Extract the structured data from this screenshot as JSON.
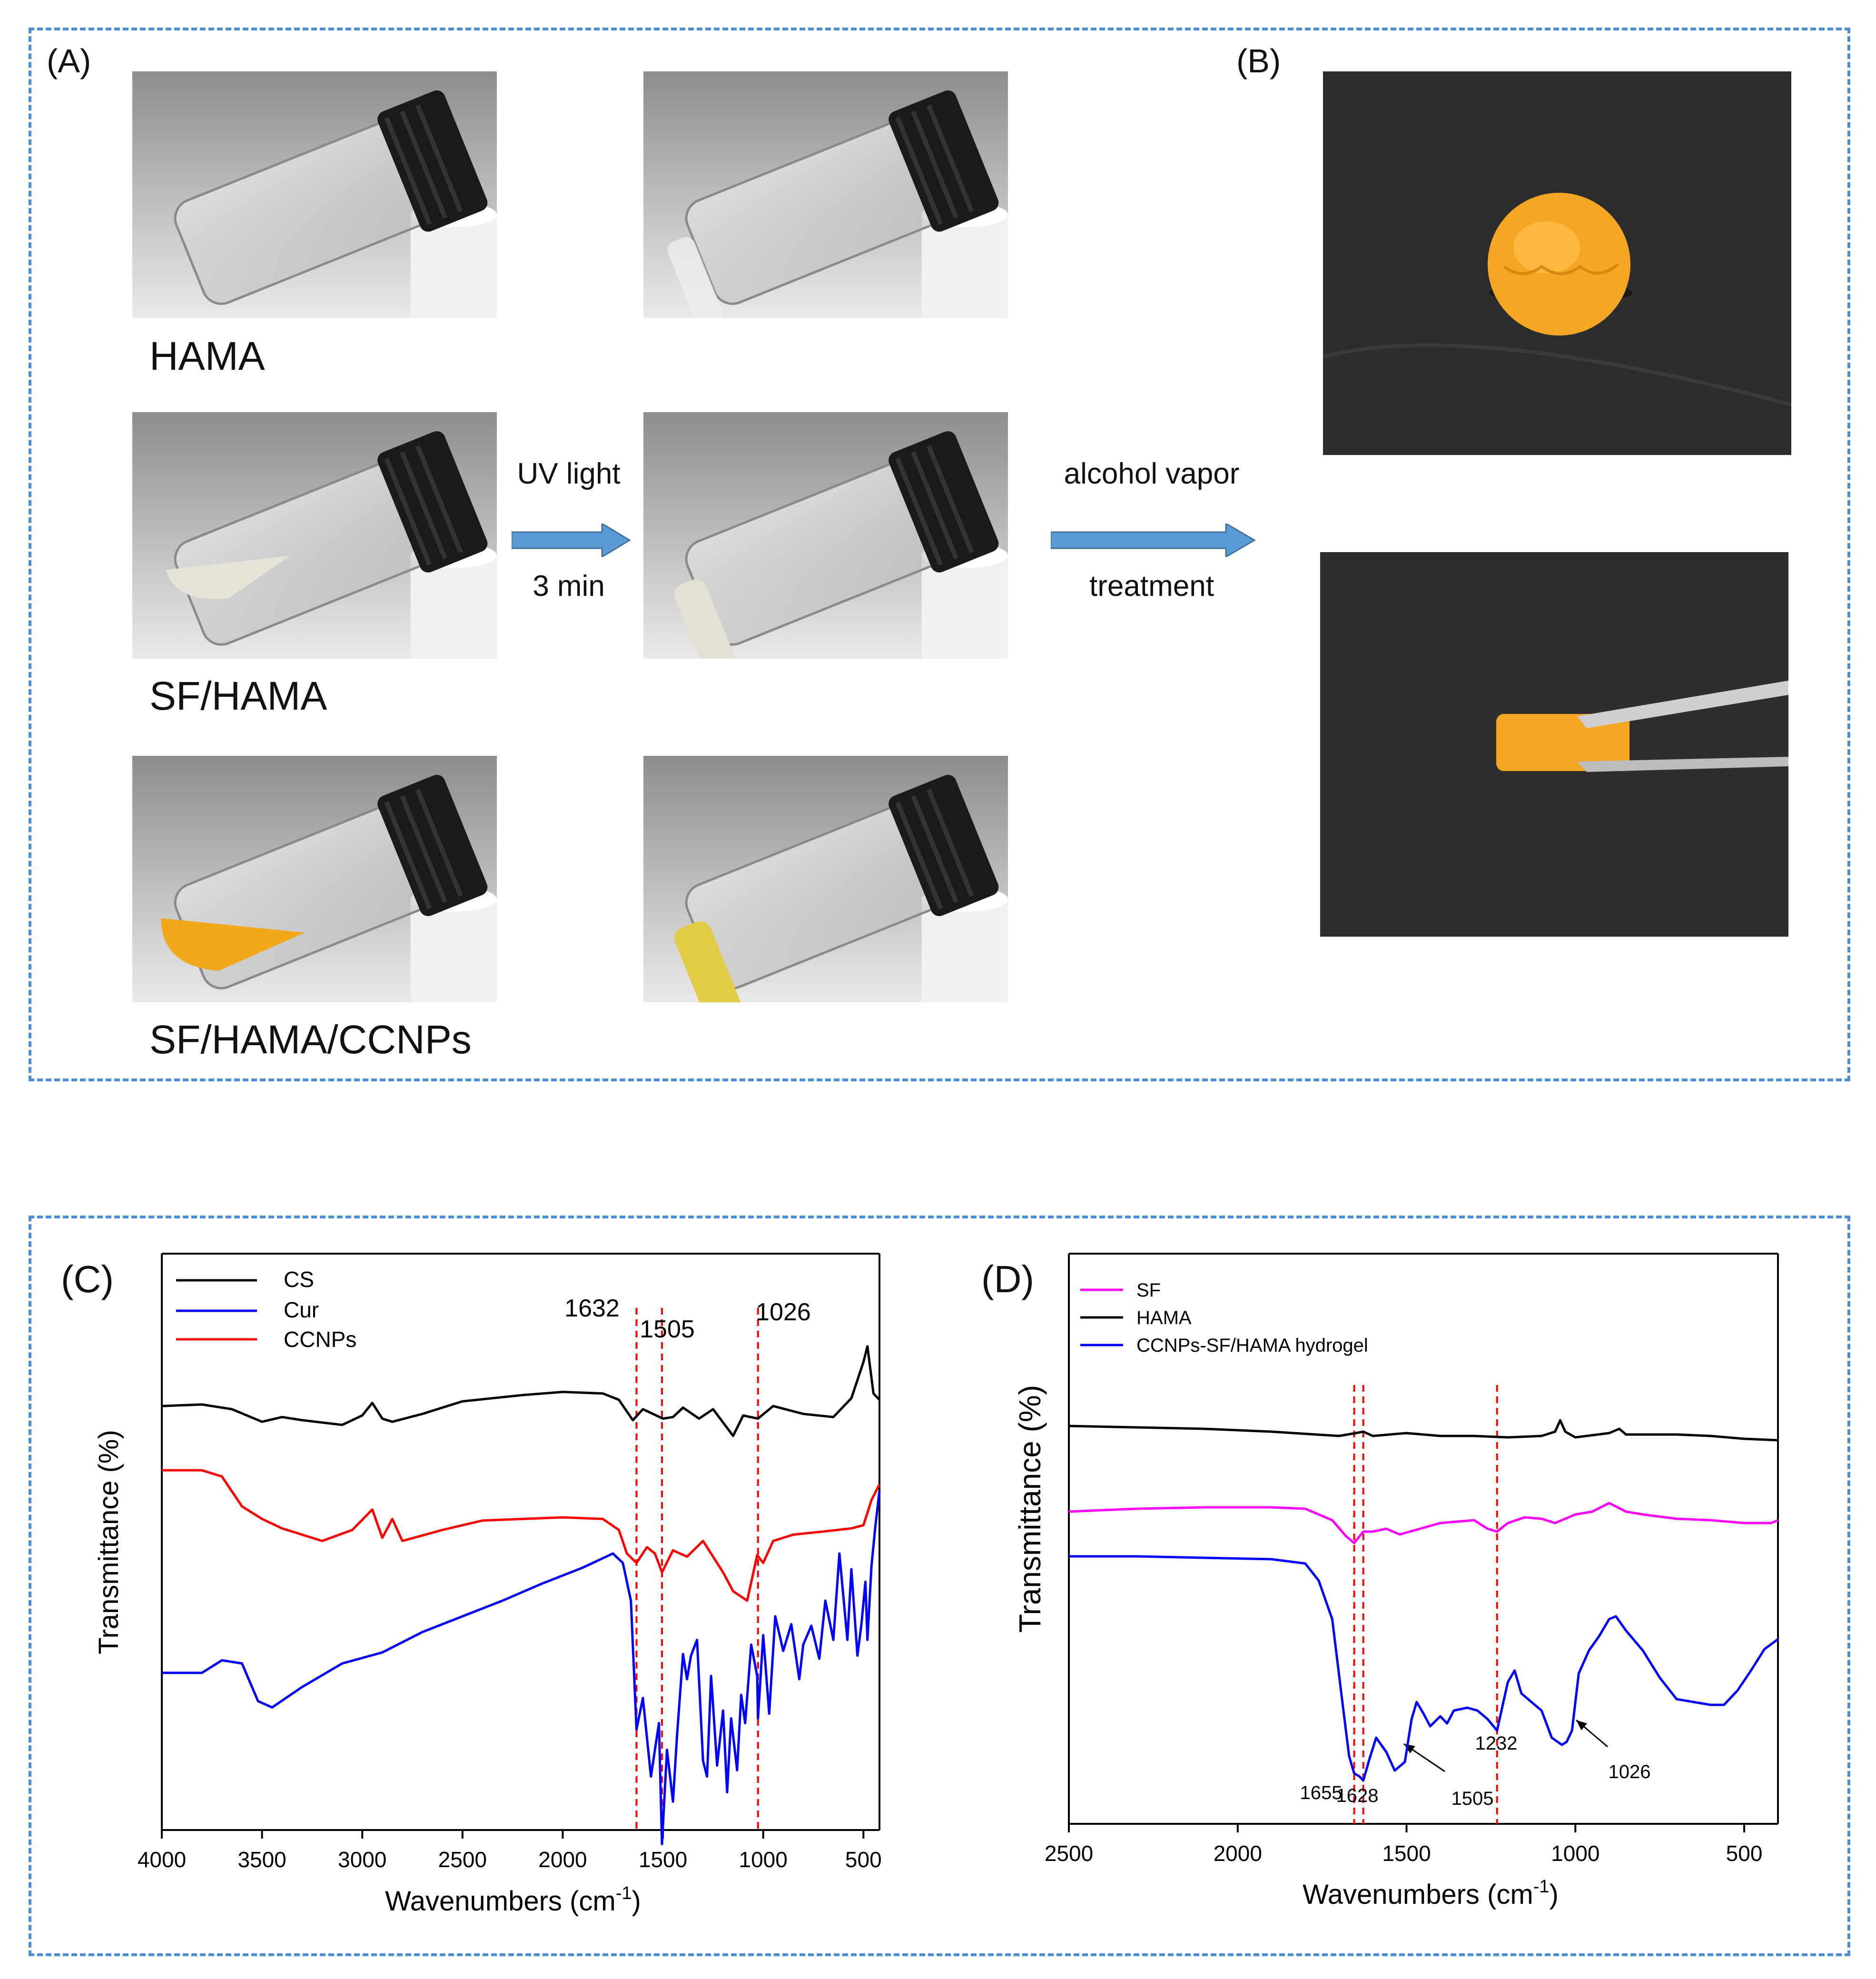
{
  "panels": {
    "a": "(A)",
    "b": "(B)",
    "c": "(C)",
    "d": "(D)"
  },
  "captions": {
    "hama": "HAMA",
    "sf_hama": "SF/HAMA",
    "sf_hama_ccnps": "SF/HAMA/CCNPs"
  },
  "uv_arrow": {
    "top": "UV light",
    "bottom": "3 min"
  },
  "alcohol_arrow": {
    "top": "alcohol vapor",
    "bottom": "treatment"
  },
  "colors": {
    "frame": "#4a8ed6",
    "arrow": "#5b9bd5",
    "black": "#000000",
    "blue": "#0000ff",
    "red": "#ff0000",
    "magenta": "#ff00ff",
    "gel": "#f5a623"
  },
  "chart_data": [
    {
      "type": "line",
      "panel": "(C)",
      "xlabel": "Wavenumbers (cm",
      "xlabel_sup": "-1",
      "xlabel_close": ")",
      "ylabel": "Transmittance (%)",
      "xlim": [
        4000,
        420
      ],
      "x_ticks": [
        "4000",
        "3500",
        "3000",
        "2500",
        "2000",
        "1500",
        "1000",
        "500"
      ],
      "markers": [
        {
          "label": "1632",
          "x": 1632
        },
        {
          "label": "1505",
          "x": 1505
        },
        {
          "label": "1026",
          "x": 1026
        }
      ],
      "series": [
        {
          "name": "CS",
          "color": "#000000",
          "points": [
            [
              4000,
              14
            ],
            [
              3800,
              13
            ],
            [
              3650,
              16
            ],
            [
              3500,
              24
            ],
            [
              3400,
              21
            ],
            [
              3300,
              23
            ],
            [
              3100,
              26
            ],
            [
              3000,
              20
            ],
            [
              2950,
              12
            ],
            [
              2900,
              22
            ],
            [
              2850,
              24
            ],
            [
              2700,
              19
            ],
            [
              2500,
              11
            ],
            [
              2350,
              9
            ],
            [
              2200,
              7
            ],
            [
              2000,
              5
            ],
            [
              1800,
              6
            ],
            [
              1720,
              10
            ],
            [
              1650,
              23
            ],
            [
              1600,
              16
            ],
            [
              1550,
              19
            ],
            [
              1500,
              22
            ],
            [
              1450,
              21
            ],
            [
              1400,
              15
            ],
            [
              1320,
              22
            ],
            [
              1250,
              16
            ],
            [
              1150,
              33
            ],
            [
              1100,
              20
            ],
            [
              1026,
              22
            ],
            [
              950,
              14
            ],
            [
              800,
              19
            ],
            [
              650,
              21
            ],
            [
              560,
              9
            ],
            [
              500,
              -14
            ],
            [
              480,
              -24
            ],
            [
              450,
              6
            ],
            [
              420,
              10
            ]
          ]
        },
        {
          "name": "CCNPs",
          "color": "#ff0000",
          "points": [
            [
              4000,
              47
            ],
            [
              3800,
              47
            ],
            [
              3700,
              51
            ],
            [
              3600,
              70
            ],
            [
              3500,
              78
            ],
            [
              3400,
              84
            ],
            [
              3200,
              92
            ],
            [
              3050,
              85
            ],
            [
              2950,
              72
            ],
            [
              2900,
              90
            ],
            [
              2850,
              78
            ],
            [
              2800,
              92
            ],
            [
              2600,
              85
            ],
            [
              2400,
              79
            ],
            [
              2200,
              78
            ],
            [
              2000,
              77
            ],
            [
              1800,
              78
            ],
            [
              1720,
              85
            ],
            [
              1680,
              100
            ],
            [
              1632,
              106
            ],
            [
              1580,
              96
            ],
            [
              1540,
              100
            ],
            [
              1505,
              112
            ],
            [
              1450,
              98
            ],
            [
              1380,
              102
            ],
            [
              1300,
              92
            ],
            [
              1200,
              112
            ],
            [
              1150,
              124
            ],
            [
              1080,
              130
            ],
            [
              1030,
              101
            ],
            [
              1000,
              106
            ],
            [
              950,
              92
            ],
            [
              850,
              88
            ],
            [
              700,
              86
            ],
            [
              560,
              84
            ],
            [
              500,
              82
            ],
            [
              460,
              66
            ],
            [
              420,
              56
            ]
          ]
        },
        {
          "name": "Cur",
          "color": "#0000ff",
          "points": [
            [
              4000,
              196
            ],
            [
              3800,
              196
            ],
            [
              3700,
              188
            ],
            [
              3600,
              190
            ],
            [
              3520,
              214
            ],
            [
              3450,
              218
            ],
            [
              3300,
              205
            ],
            [
              3100,
              190
            ],
            [
              2900,
              183
            ],
            [
              2700,
              170
            ],
            [
              2500,
              160
            ],
            [
              2300,
              150
            ],
            [
              2100,
              139
            ],
            [
              1900,
              129
            ],
            [
              1750,
              120
            ],
            [
              1700,
              126
            ],
            [
              1660,
              150
            ],
            [
              1632,
              232
            ],
            [
              1600,
              212
            ],
            [
              1560,
              262
            ],
            [
              1520,
              228
            ],
            [
              1505,
              305
            ],
            [
              1480,
              245
            ],
            [
              1450,
              278
            ],
            [
              1430,
              236
            ],
            [
              1400,
              184
            ],
            [
              1380,
              200
            ],
            [
              1360,
              185
            ],
            [
              1330,
              175
            ],
            [
              1300,
              252
            ],
            [
              1280,
              262
            ],
            [
              1260,
              198
            ],
            [
              1230,
              255
            ],
            [
              1200,
              220
            ],
            [
              1180,
              272
            ],
            [
              1160,
              225
            ],
            [
              1130,
              258
            ],
            [
              1110,
              210
            ],
            [
              1090,
              228
            ],
            [
              1060,
              178
            ],
            [
              1030,
              198
            ],
            [
              1026,
              225
            ],
            [
              1000,
              172
            ],
            [
              970,
              222
            ],
            [
              940,
              160
            ],
            [
              900,
              182
            ],
            [
              860,
              165
            ],
            [
              820,
              200
            ],
            [
              800,
              178
            ],
            [
              760,
              166
            ],
            [
              720,
              187
            ],
            [
              690,
              150
            ],
            [
              650,
              175
            ],
            [
              620,
              120
            ],
            [
              580,
              175
            ],
            [
              560,
              130
            ],
            [
              530,
              185
            ],
            [
              510,
              165
            ],
            [
              490,
              138
            ],
            [
              480,
              175
            ],
            [
              460,
              128
            ],
            [
              440,
              102
            ],
            [
              420,
              80
            ]
          ]
        }
      ]
    },
    {
      "type": "line",
      "panel": "(D)",
      "xlabel": "Wavenumbers (cm",
      "xlabel_sup": "-1",
      "xlabel_close": ")",
      "ylabel": "Transmittance (%)",
      "xlim": [
        2500,
        400
      ],
      "x_ticks": [
        "2500",
        "2000",
        "1500",
        "1000",
        "500"
      ],
      "markers": [
        {
          "label": "1655",
          "x": 1655
        },
        {
          "label": "1628",
          "x": 1628
        },
        {
          "label": "1232",
          "x": 1232
        }
      ],
      "arrow_labels": [
        {
          "label": "1505",
          "x": 1505
        },
        {
          "label": "1026",
          "x": 1026
        }
      ],
      "series": [
        {
          "name": "SF",
          "color": "#ff00ff",
          "points": [
            [
              2500,
              28
            ],
            [
              2300,
              26
            ],
            [
              2100,
              25
            ],
            [
              1900,
              25
            ],
            [
              1800,
              26
            ],
            [
              1720,
              34
            ],
            [
              1680,
              45
            ],
            [
              1655,
              50
            ],
            [
              1628,
              42
            ],
            [
              1600,
              42
            ],
            [
              1560,
              40
            ],
            [
              1520,
              44
            ],
            [
              1460,
              40
            ],
            [
              1400,
              36
            ],
            [
              1300,
              34
            ],
            [
              1260,
              40
            ],
            [
              1232,
              42
            ],
            [
              1200,
              36
            ],
            [
              1150,
              32
            ],
            [
              1100,
              33
            ],
            [
              1060,
              36
            ],
            [
              1000,
              30
            ],
            [
              950,
              28
            ],
            [
              900,
              22
            ],
            [
              850,
              28
            ],
            [
              800,
              30
            ],
            [
              700,
              33
            ],
            [
              600,
              34
            ],
            [
              500,
              36
            ],
            [
              420,
              36
            ],
            [
              400,
              34
            ]
          ]
        },
        {
          "name": "HAMA",
          "color": "#000000",
          "points": [
            [
              2500,
              0
            ],
            [
              2300,
              1
            ],
            [
              2100,
              2
            ],
            [
              1900,
              4
            ],
            [
              1700,
              7
            ],
            [
              1650,
              5
            ],
            [
              1628,
              4
            ],
            [
              1600,
              7
            ],
            [
              1500,
              5
            ],
            [
              1400,
              7
            ],
            [
              1300,
              7
            ],
            [
              1200,
              8
            ],
            [
              1100,
              7
            ],
            [
              1060,
              4
            ],
            [
              1045,
              -4
            ],
            [
              1030,
              4
            ],
            [
              1000,
              8
            ],
            [
              900,
              5
            ],
            [
              870,
              2
            ],
            [
              850,
              6
            ],
            [
              700,
              6
            ],
            [
              600,
              7
            ],
            [
              500,
              9
            ],
            [
              400,
              10
            ]
          ]
        },
        {
          "name": "CCNPs-SF/HAMA hydrogel",
          "color": "#0000ff",
          "points": [
            [
              2500,
              38
            ],
            [
              2300,
              38
            ],
            [
              2100,
              39
            ],
            [
              1900,
              40
            ],
            [
              1800,
              43
            ],
            [
              1760,
              55
            ],
            [
              1720,
              82
            ],
            [
              1690,
              140
            ],
            [
              1670,
              178
            ],
            [
              1655,
              190
            ],
            [
              1640,
              192
            ],
            [
              1628,
              195
            ],
            [
              1610,
              180
            ],
            [
              1590,
              165
            ],
            [
              1560,
              175
            ],
            [
              1535,
              188
            ],
            [
              1505,
              182
            ],
            [
              1485,
              152
            ],
            [
              1470,
              140
            ],
            [
              1450,
              148
            ],
            [
              1430,
              157
            ],
            [
              1400,
              150
            ],
            [
              1380,
              155
            ],
            [
              1360,
              146
            ],
            [
              1320,
              144
            ],
            [
              1290,
              146
            ],
            [
              1260,
              152
            ],
            [
              1232,
              160
            ],
            [
              1200,
              126
            ],
            [
              1180,
              118
            ],
            [
              1160,
              134
            ],
            [
              1130,
              140
            ],
            [
              1100,
              146
            ],
            [
              1070,
              165
            ],
            [
              1040,
              170
            ],
            [
              1026,
              168
            ],
            [
              1010,
              160
            ],
            [
              990,
              120
            ],
            [
              960,
              104
            ],
            [
              930,
              94
            ],
            [
              900,
              82
            ],
            [
              880,
              80
            ],
            [
              850,
              90
            ],
            [
              800,
              104
            ],
            [
              750,
              123
            ],
            [
              700,
              138
            ],
            [
              650,
              140
            ],
            [
              600,
              142
            ],
            [
              560,
              142
            ],
            [
              520,
              132
            ],
            [
              480,
              118
            ],
            [
              440,
              103
            ],
            [
              400,
              96
            ]
          ]
        }
      ]
    }
  ]
}
